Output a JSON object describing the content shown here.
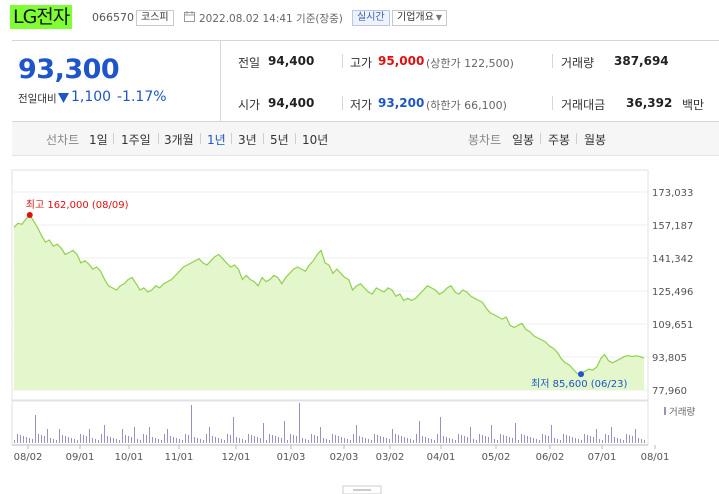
{
  "header": {
    "company_name": "LG전자",
    "stock_code": "066570",
    "market": "코스피",
    "timestamp": "2022.08.02 14:41 기준(장중)",
    "realtime_label": "실시간",
    "company_info_label": "기업개요"
  },
  "summary": {
    "current_price": "93,300",
    "change_label": "전일대비",
    "change_amount": "1,100",
    "change_rate": "-1.17%",
    "prev_close_label": "전일",
    "prev_close": "94,400",
    "open_label": "시가",
    "open": "94,400",
    "high_label": "고가",
    "high": "95,000",
    "upper_limit": "(상한가 122,500)",
    "low_label": "저가",
    "low": "93,200",
    "lower_limit": "(하한가 66,100)",
    "volume_label": "거래량",
    "volume": "387,694",
    "trade_value_label": "거래대금",
    "trade_value": "36,392",
    "trade_value_unit": "백만"
  },
  "periods": {
    "line_chart_label": "선차트",
    "items": [
      "1일",
      "1주일",
      "3개월",
      "1년",
      "3년",
      "5년",
      "10년"
    ],
    "active_index": 3,
    "candle_chart_label": "봉차트",
    "candle_items": [
      "일봉",
      "주봉",
      "월봉"
    ]
  },
  "colors": {
    "price_up": "#e01010",
    "price_down": "#1e55c8",
    "area_line": "#8fd14f",
    "area_fill": "#e3f6cc",
    "volume_bar": "#9a90c4"
  },
  "chart_data": {
    "type": "area",
    "y_ticks": [
      "173,033",
      "157,187",
      "141,342",
      "125,496",
      "109,651",
      "93,805",
      "77,960"
    ],
    "ylim": [
      77960,
      173033
    ],
    "x_ticks": [
      "08/02",
      "09/01",
      "10/01",
      "11/01",
      "12/01",
      "01/03",
      "02/03",
      "03/02",
      "04/01",
      "05/02",
      "06/02",
      "07/01",
      "08/01"
    ],
    "series": [
      {
        "values": [
          156000,
          158000,
          157500,
          160000,
          162000,
          159000,
          156000,
          152000,
          149000,
          150000,
          147000,
          148000,
          146000,
          143000,
          144000,
          145000,
          143000,
          139000,
          140000,
          138500,
          136000,
          137000,
          135000,
          131000,
          128000,
          127000,
          126000,
          128000,
          129000,
          131000,
          132000,
          129000,
          126000,
          127000,
          125000,
          126000,
          128000,
          127000,
          129000,
          130000,
          131000,
          133000,
          135000,
          137000,
          138000,
          139000,
          140000,
          141000,
          139000,
          138000,
          140000,
          142000,
          143000,
          141000,
          139000,
          137000,
          138000,
          136000,
          131000,
          133000,
          131000,
          130000,
          128000,
          132000,
          130000,
          131000,
          133000,
          132000,
          129000,
          132000,
          134000,
          136000,
          137000,
          136000,
          135000,
          138000,
          140000,
          143000,
          145000,
          139000,
          138000,
          134000,
          136000,
          134000,
          132000,
          131000,
          126000,
          128000,
          129000,
          127000,
          125000,
          124000,
          127000,
          126000,
          125000,
          127000,
          126000,
          123000,
          124000,
          121000,
          122000,
          121000,
          122000,
          124000,
          126000,
          128000,
          127000,
          126000,
          124000,
          125000,
          127000,
          128000,
          125000,
          124000,
          126000,
          125000,
          123000,
          122000,
          121000,
          120000,
          117000,
          115000,
          114000,
          113000,
          112000,
          113000,
          109000,
          108000,
          109000,
          110000,
          107000,
          106000,
          104000,
          103000,
          102000,
          101000,
          99000,
          98000,
          96000,
          93000,
          91000,
          90000,
          88000,
          86000,
          85600,
          87000,
          88000,
          87500,
          89000,
          93000,
          95000,
          92000,
          91000,
          92000,
          93000,
          94000,
          94500,
          94000,
          94400,
          94000,
          93300
        ],
        "max": {
          "label": "최고 162,000 (08/09)",
          "value": 162000,
          "index": 4
        },
        "min": {
          "label": "최저 85,600 (06/23)",
          "value": 85600,
          "index": 144
        }
      }
    ]
  },
  "volume_legend": "거래량"
}
